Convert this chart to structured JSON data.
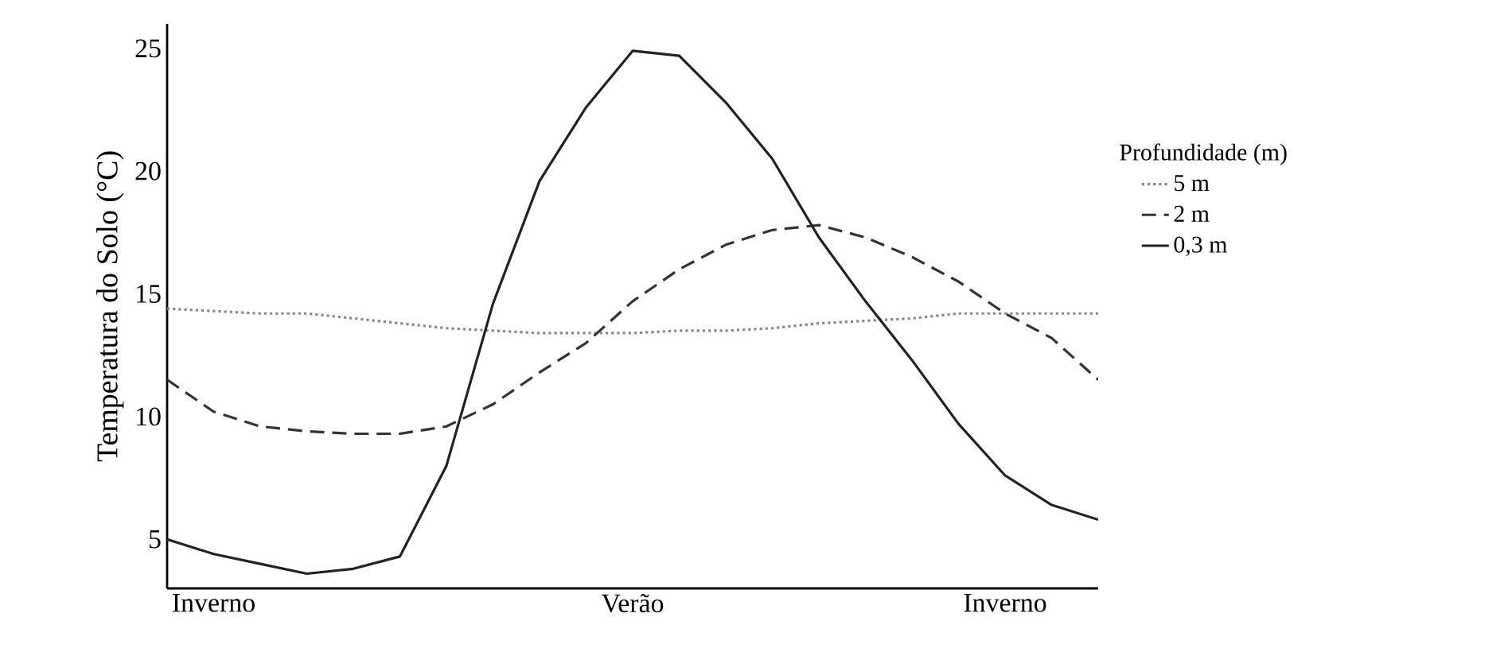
{
  "chart_data": {
    "type": "line",
    "ylabel": "Temperatura do Solo (°C)",
    "legend_title": "Profundidade (m)",
    "categories": [
      null,
      "Inverno",
      null,
      null,
      null,
      null,
      null,
      null,
      null,
      null,
      "Verão",
      null,
      null,
      null,
      null,
      null,
      null,
      null,
      "Inverno",
      null,
      null
    ],
    "ylim": [
      3,
      26
    ],
    "yticks": [
      5,
      10,
      15,
      20,
      25
    ],
    "grid": false,
    "legend": "right",
    "marker": "none",
    "series": [
      {
        "name": "5 m",
        "color": "#888888",
        "line_style": "dotted",
        "values": [
          14.4,
          14.3,
          14.2,
          14.2,
          14.0,
          13.8,
          13.6,
          13.5,
          13.4,
          13.4,
          13.4,
          13.5,
          13.5,
          13.6,
          13.8,
          13.9,
          14.0,
          14.2,
          14.2,
          14.2,
          14.2
        ]
      },
      {
        "name": "2 m",
        "color": "#333333",
        "line_style": "dashed",
        "values": [
          11.5,
          10.2,
          9.6,
          9.4,
          9.3,
          9.3,
          9.6,
          10.5,
          11.8,
          13.0,
          14.7,
          16.0,
          17.0,
          17.6,
          17.8,
          17.3,
          16.5,
          15.5,
          14.2,
          13.2,
          11.5
        ]
      },
      {
        "name": "0,3 m",
        "color": "#222222",
        "line_style": "solid",
        "values": [
          5.0,
          4.4,
          4.0,
          3.6,
          3.8,
          4.3,
          8.0,
          14.6,
          19.6,
          22.6,
          24.9,
          24.7,
          22.8,
          20.5,
          17.3,
          14.7,
          12.3,
          9.7,
          7.6,
          6.4,
          5.8
        ]
      }
    ]
  }
}
